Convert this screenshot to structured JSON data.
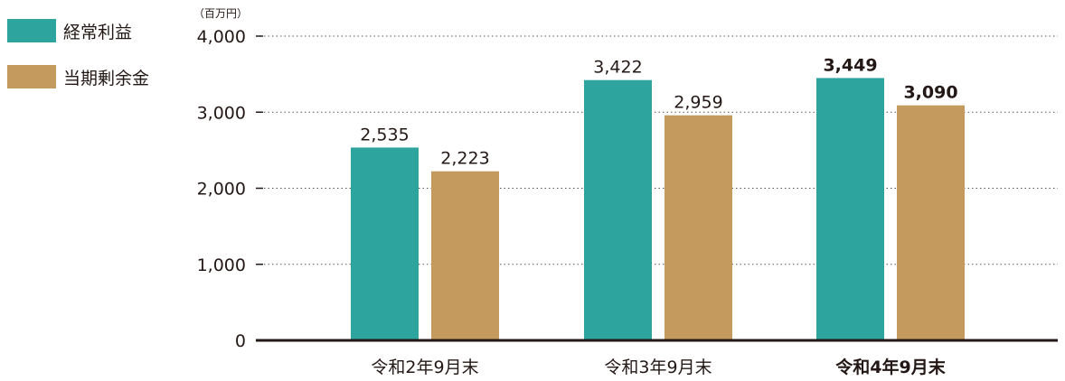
{
  "chart_data": {
    "type": "bar",
    "unit_label": "（百万円）",
    "categories": [
      "令和2年9月末",
      "令和3年9月末",
      "令和4年9月末"
    ],
    "highlight_category_index": 2,
    "series": [
      {
        "name": "経常利益",
        "color": "#2ea49e",
        "values": [
          2535,
          3422,
          3449
        ],
        "labels": [
          "2,535",
          "3,422",
          "3,449"
        ]
      },
      {
        "name": "当期剰余金",
        "color": "#c49a5e",
        "values": [
          2223,
          2959,
          3090
        ],
        "labels": [
          "2,223",
          "2,959",
          "3,090"
        ]
      }
    ],
    "ylim": [
      0,
      4000
    ],
    "yticks": [
      0,
      1000,
      2000,
      3000,
      4000
    ],
    "ytick_labels": [
      "0",
      "1,000",
      "2,000",
      "3,000",
      "4,000"
    ],
    "grid": "horizontal-dotted",
    "legend_position": "top-left"
  }
}
